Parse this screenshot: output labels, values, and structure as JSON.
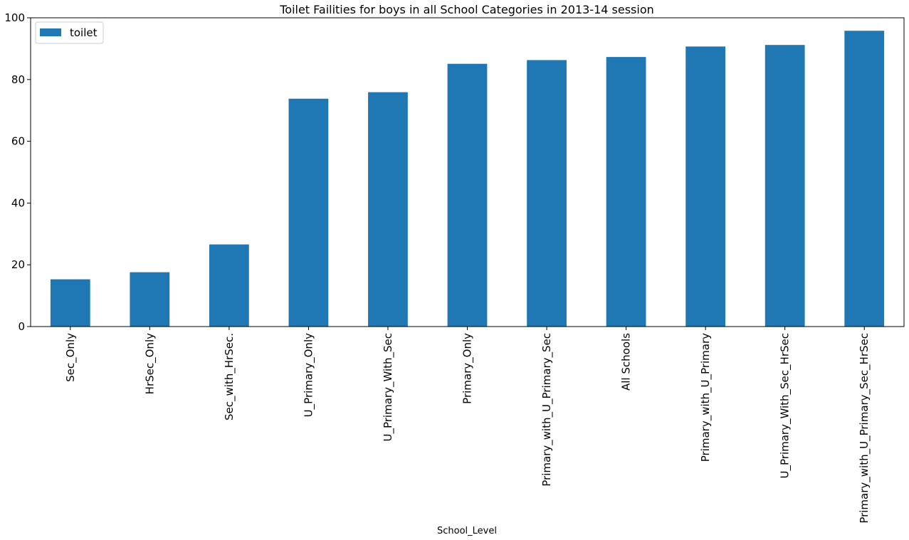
{
  "chart_data": {
    "type": "bar",
    "title": "Toilet Failities for boys in all School Categories in 2013-14 session",
    "xlabel": "School_Level",
    "ylabel": "",
    "categories": [
      "Sec_Only",
      "HrSec_Only",
      "Sec_with_HrSec.",
      "U_Primary_Only",
      "U_Primary_With_Sec",
      "Primary_Only",
      "Primary_with_U_Primary_Sec",
      "All Schools",
      "Primary_with_U_Primary",
      "U_Primary_With_Sec_HrSec",
      "Primary_with_U_Primary_Sec_HrSec"
    ],
    "series": [
      {
        "name": "toilet",
        "color": "#1f77b4",
        "values": [
          15.3,
          17.6,
          26.6,
          73.8,
          75.9,
          85.1,
          86.3,
          87.3,
          90.7,
          91.2,
          95.8
        ]
      }
    ],
    "ylim": [
      0,
      100
    ],
    "yticks": [
      0,
      20,
      40,
      60,
      80,
      100
    ],
    "grid": false,
    "legend": "top-left"
  }
}
